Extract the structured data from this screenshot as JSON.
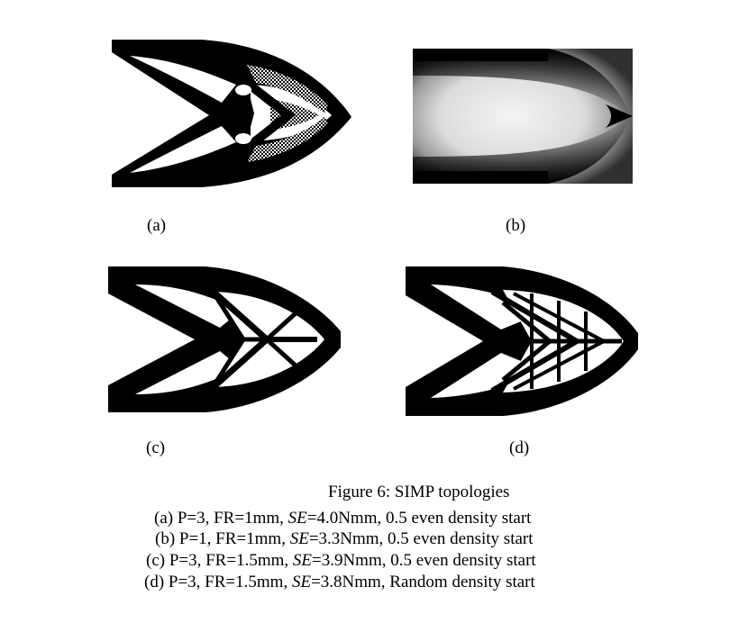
{
  "panels": [
    {
      "label": "(a)"
    },
    {
      "label": "(b)"
    },
    {
      "label": "(c)"
    },
    {
      "label": "(d)"
    }
  ],
  "caption": {
    "title": "Figure 6: SIMP topologies",
    "lines": [
      {
        "pre": "(a) P=3, FR=1mm, ",
        "italic": "SE",
        "post": "=4.0Nmm, 0.5 even density start"
      },
      {
        "pre": "(b) P=1, FR=1mm, ",
        "italic": "SE",
        "post": "=3.3Nmm, 0.5 even density start"
      },
      {
        "pre": "(c) P=3, FR=1.5mm, ",
        "italic": "SE",
        "post": "=3.9Nmm, 0.5 even density start"
      },
      {
        "pre": "(d) P=3, FR=1.5mm, ",
        "italic": "SE",
        "post": "=3.8Nmm, Random density start"
      }
    ]
  }
}
